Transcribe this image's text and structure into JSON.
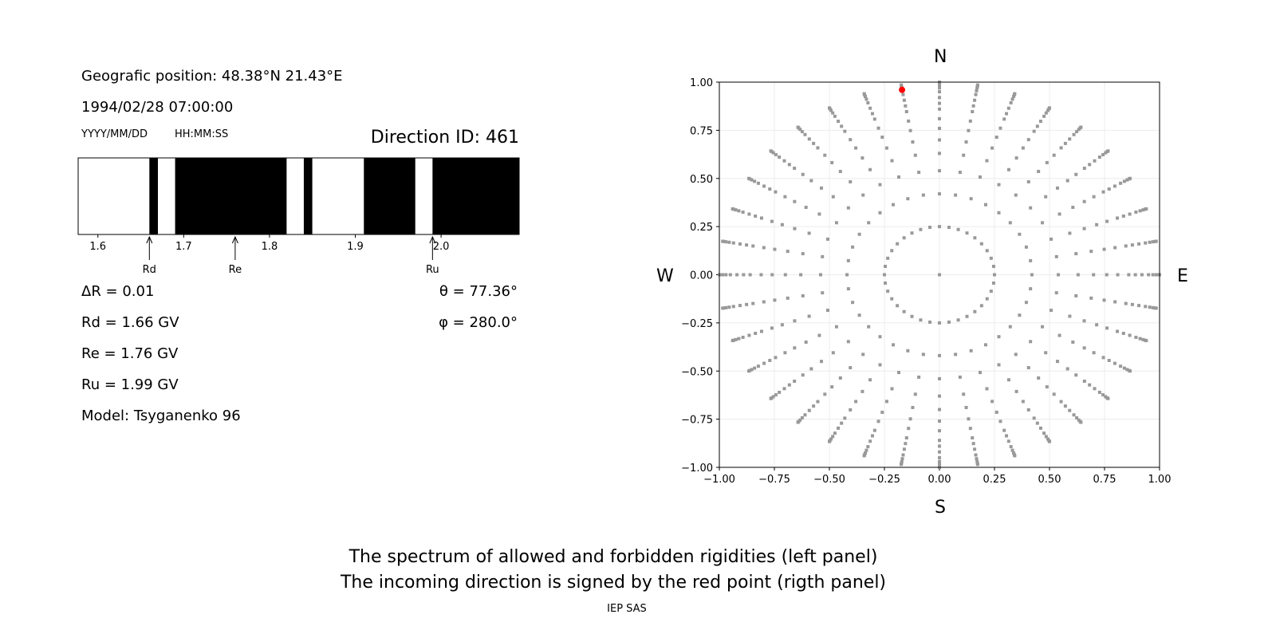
{
  "left_panel": {
    "position": "Geografic position: 48.38°N 21.43°E",
    "datetime": "1994/02/28 07:00:00",
    "date_format": "YYYY/MM/DD",
    "time_format": "HH:MM:SS",
    "direction_id": "Direction ID: 461",
    "delta_r": "ΔR = 0.01",
    "rd": "Rd = 1.66 GV",
    "re": "Re = 1.76 GV",
    "ru": "Ru = 1.99 GV",
    "model": "Model: Tsyganenko 96",
    "theta": "θ = 77.36°",
    "phi": "φ = 280.0°"
  },
  "right_panel": {
    "north": "N",
    "south": "S",
    "west": "W",
    "east": "E"
  },
  "caption": {
    "line1": "The spectrum of allowed and forbidden rigidities (left panel)",
    "line2": "The incoming direction is signed by the red point (rigth panel)",
    "credit": "IEP SAS"
  },
  "chart_data": [
    {
      "type": "bar",
      "description_kind": "rigidity spectrum strip",
      "xlim": [
        1.577,
        2.091
      ],
      "xticks": [
        "1.6",
        "1.7",
        "1.8",
        "1.9",
        "2.0"
      ],
      "colors": {
        "allowed": "#ffffff",
        "forbidden": "#000000"
      },
      "bands": [
        {
          "from": 1.577,
          "to": 1.66,
          "state": "allowed"
        },
        {
          "from": 1.66,
          "to": 1.67,
          "state": "forbidden"
        },
        {
          "from": 1.67,
          "to": 1.69,
          "state": "allowed"
        },
        {
          "from": 1.69,
          "to": 1.82,
          "state": "forbidden"
        },
        {
          "from": 1.82,
          "to": 1.84,
          "state": "allowed"
        },
        {
          "from": 1.84,
          "to": 1.85,
          "state": "forbidden"
        },
        {
          "from": 1.85,
          "to": 1.91,
          "state": "allowed"
        },
        {
          "from": 1.91,
          "to": 1.97,
          "state": "forbidden"
        },
        {
          "from": 1.97,
          "to": 1.99,
          "state": "allowed"
        },
        {
          "from": 1.99,
          "to": 2.091,
          "state": "forbidden"
        }
      ],
      "markers": [
        {
          "label": "Rd",
          "value": 1.66
        },
        {
          "label": "Re",
          "value": 1.76
        },
        {
          "label": "Ru",
          "value": 1.99
        }
      ]
    },
    {
      "type": "scatter",
      "xlim": [
        -1,
        1
      ],
      "ylim": [
        -1,
        1
      ],
      "grid": true,
      "xticks": [
        "−1.00",
        "−0.75",
        "−0.50",
        "−0.25",
        "0.00",
        "0.25",
        "0.50",
        "0.75",
        "1.00"
      ],
      "yticks": [
        "−1.00",
        "−0.75",
        "−0.50",
        "−0.25",
        "0.00",
        "0.25",
        "0.50",
        "0.75",
        "1.00"
      ],
      "grid_points": {
        "azimuth_step_deg": 10,
        "radii": [
          0.25,
          0.42,
          0.54,
          0.63,
          0.7,
          0.76,
          0.81,
          0.86,
          0.89,
          0.92,
          0.95,
          0.97,
          0.985,
          0.995,
          1.0
        ],
        "center": [
          0,
          0
        ],
        "color": "#999999"
      },
      "highlight_point": {
        "x": -0.17,
        "y": 0.96,
        "color": "#ff0000"
      }
    }
  ]
}
